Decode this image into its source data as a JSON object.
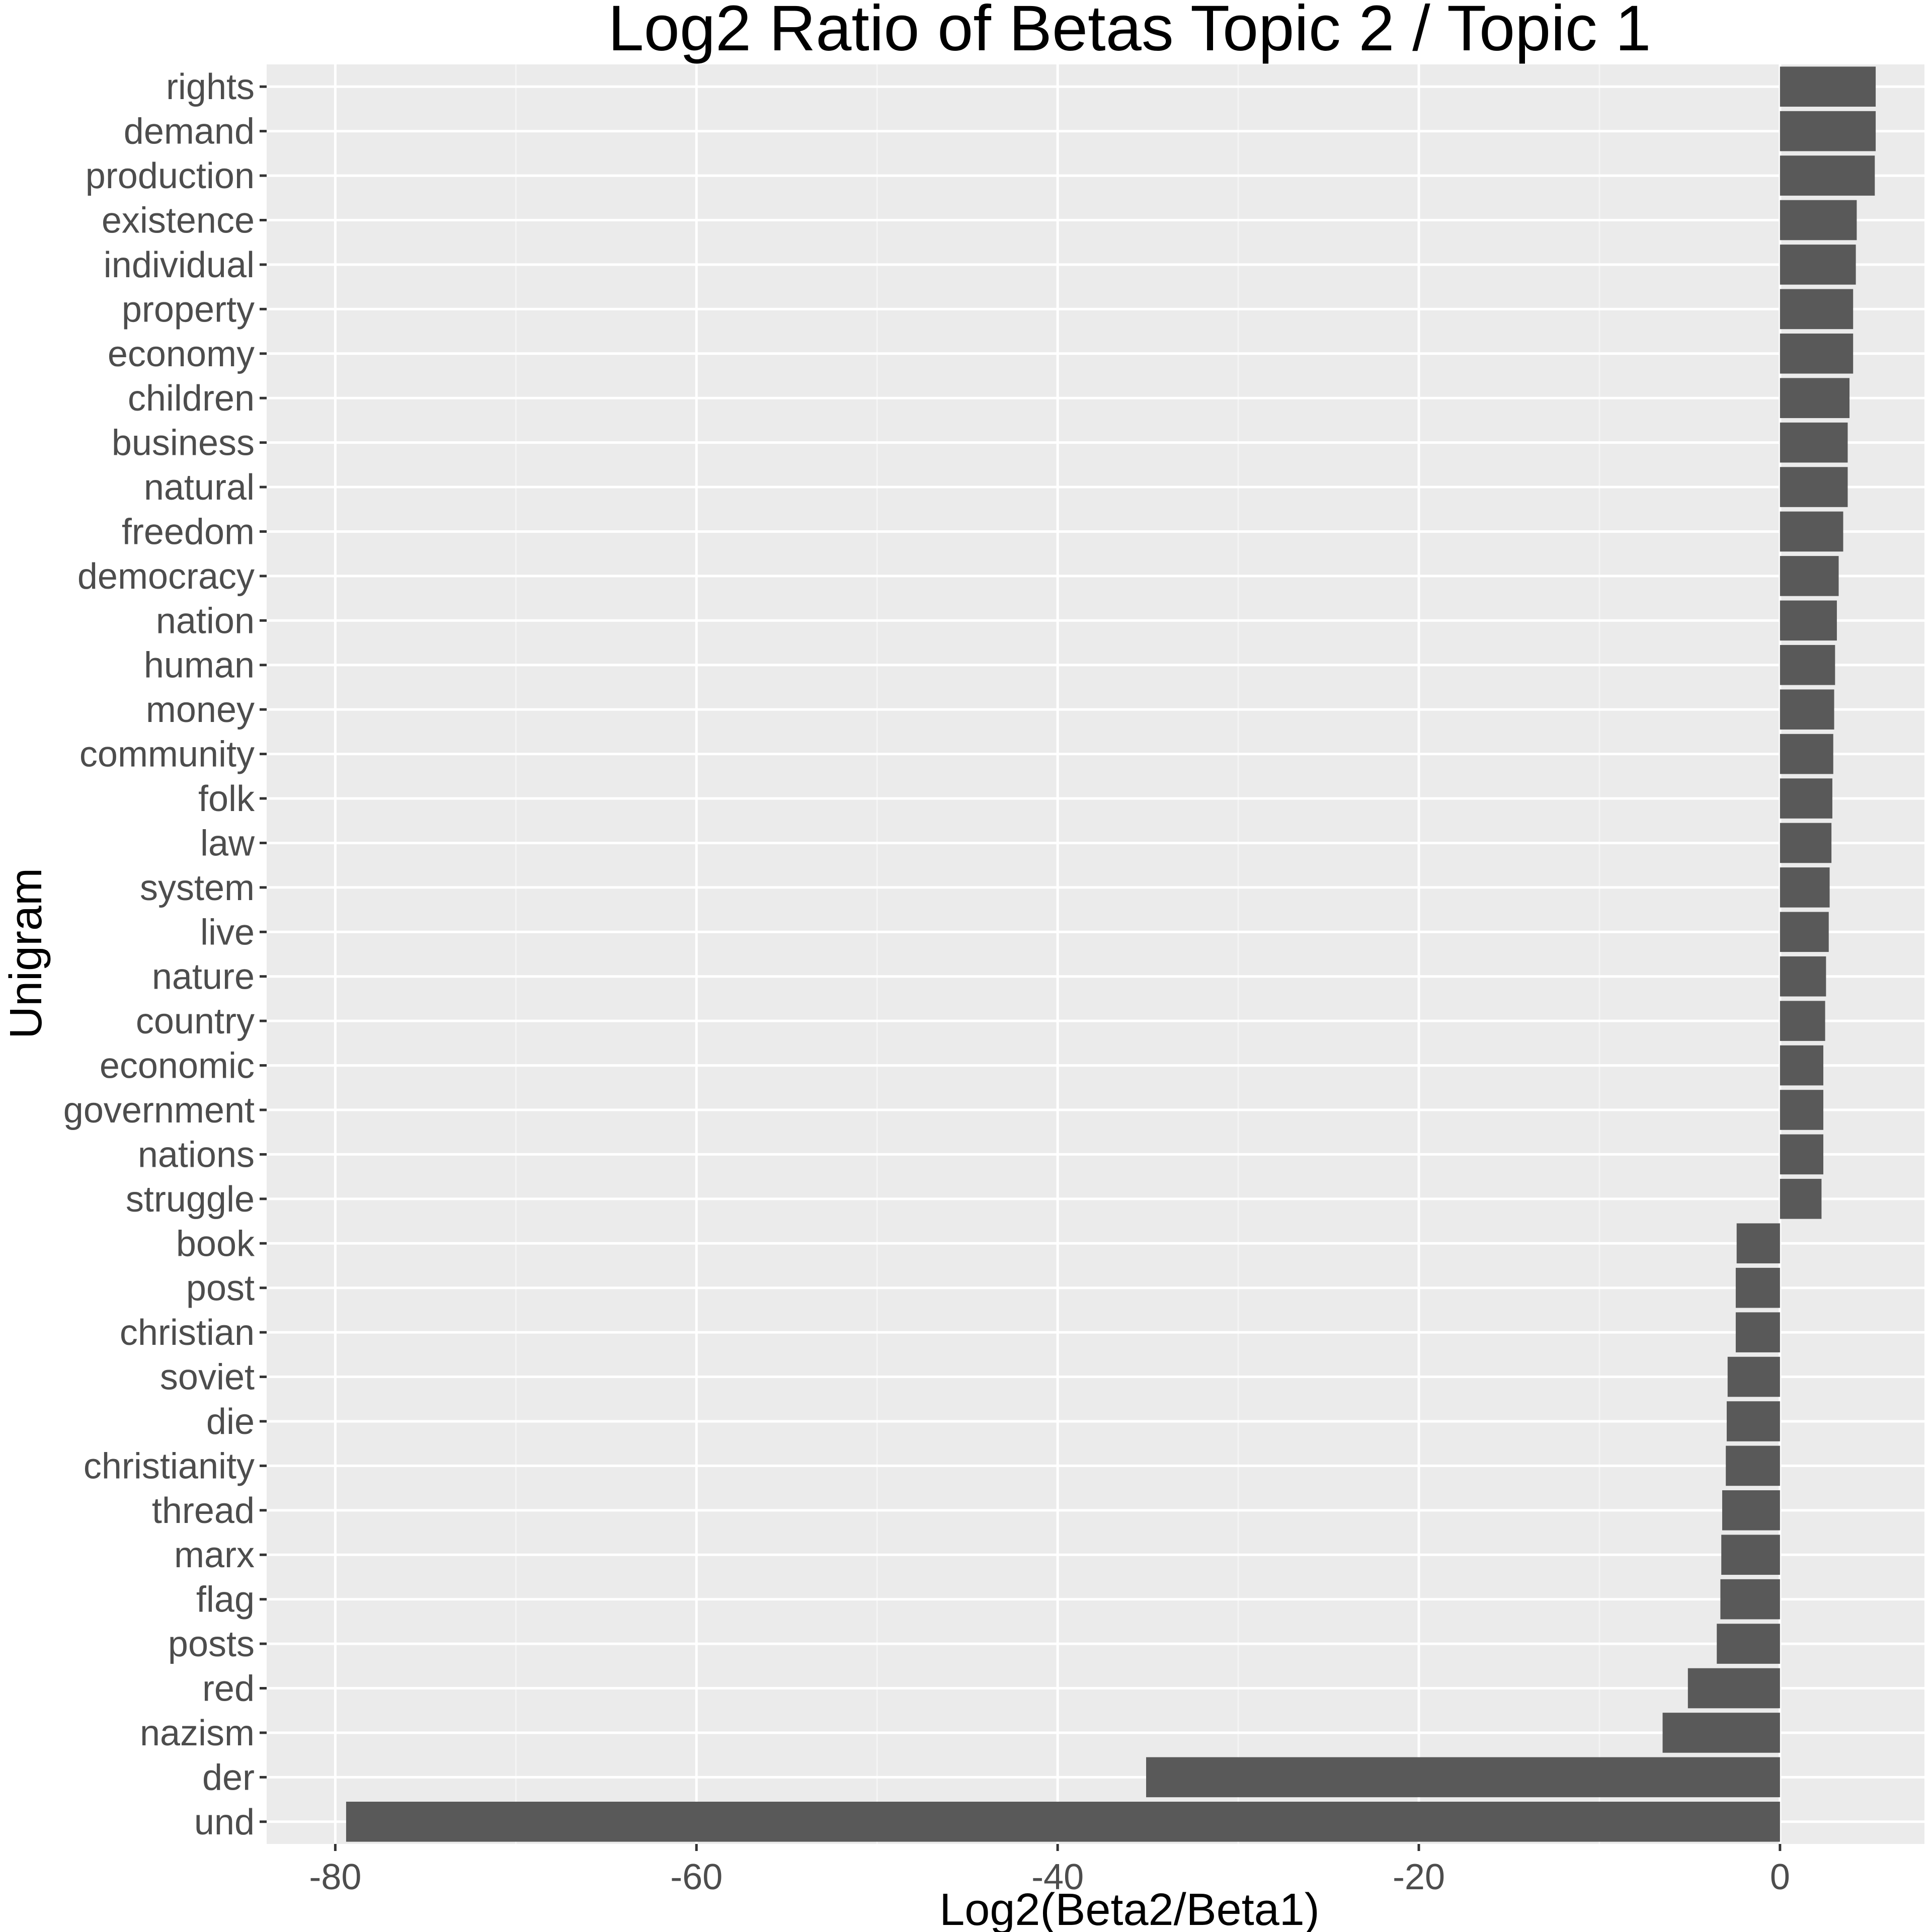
{
  "chart_data": {
    "type": "bar",
    "orientation": "horizontal",
    "title": "Log2 Ratio of Betas Topic 2 / Topic 1",
    "xlabel": "Log2(Beta2/Beta1)",
    "ylabel": "Unigram",
    "xlim": [
      -83.8,
      8.0
    ],
    "xticks": [
      -80,
      -60,
      -40,
      -20,
      0
    ],
    "grid": true,
    "categories": [
      "rights",
      "demand",
      "production",
      "existence",
      "individual",
      "property",
      "economy",
      "children",
      "business",
      "natural",
      "freedom",
      "democracy",
      "nation",
      "human",
      "money",
      "community",
      "folk",
      "law",
      "system",
      "live",
      "nature",
      "country",
      "economic",
      "government",
      "nations",
      "struggle",
      "book",
      "post",
      "christian",
      "soviet",
      "die",
      "christianity",
      "thread",
      "marx",
      "flag",
      "posts",
      "red",
      "nazism",
      "der",
      "und"
    ],
    "values": [
      5.3,
      5.3,
      5.25,
      4.25,
      4.2,
      4.05,
      4.05,
      3.85,
      3.75,
      3.75,
      3.5,
      3.25,
      3.15,
      3.05,
      3.0,
      2.95,
      2.9,
      2.85,
      2.75,
      2.7,
      2.55,
      2.5,
      2.4,
      2.4,
      2.4,
      2.3,
      -2.4,
      -2.45,
      -2.45,
      -2.9,
      -2.95,
      -3.0,
      -3.2,
      -3.25,
      -3.3,
      -3.5,
      -5.1,
      -6.5,
      -35.1,
      -79.4
    ],
    "colors": {
      "bar": "#595959",
      "panel": "#ebebeb",
      "grid_major": "#ffffff",
      "grid_minor": "#f4f4f4",
      "tick_text": "#4d4d4d",
      "title_text": "#000000"
    }
  }
}
